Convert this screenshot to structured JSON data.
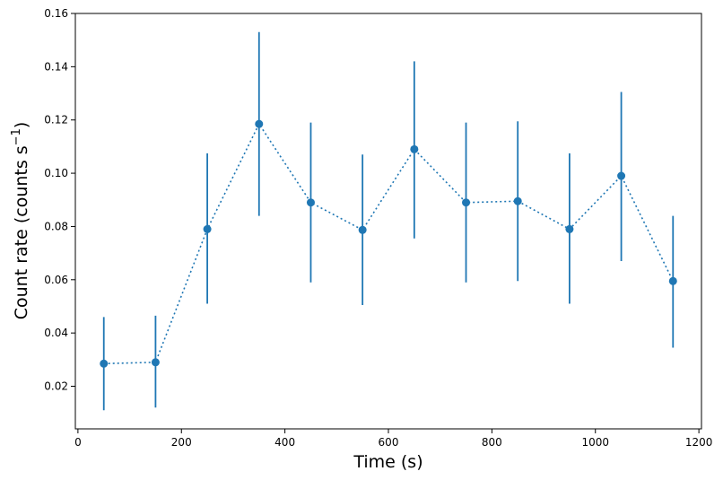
{
  "chart_data": {
    "type": "scatter",
    "title": "",
    "xlabel": "Time (s)",
    "ylabel": "Count rate (counts s",
    "ylabel_sup": "−1",
    "ylabel_tail": ")",
    "xlim": [
      -5,
      1205
    ],
    "ylim": [
      0.004,
      0.16
    ],
    "xticks": [
      0,
      200,
      400,
      600,
      800,
      1000,
      1200
    ],
    "xtick_labels": [
      "0",
      "200",
      "400",
      "600",
      "800",
      "1000",
      "1200"
    ],
    "yticks": [
      0.02,
      0.04,
      0.06,
      0.08,
      0.1,
      0.12,
      0.14,
      0.16
    ],
    "ytick_labels": [
      "0.02",
      "0.04",
      "0.06",
      "0.08",
      "0.10",
      "0.12",
      "0.14",
      "0.16"
    ],
    "grid": false,
    "line_style": "dotted",
    "color": "#1f77b4",
    "series": [
      {
        "x": [
          50,
          150,
          250,
          350,
          450,
          550,
          650,
          750,
          850,
          950,
          1050,
          1150
        ],
        "y": [
          0.0285,
          0.029,
          0.079,
          0.1185,
          0.089,
          0.0787,
          0.109,
          0.089,
          0.0895,
          0.079,
          0.099,
          0.0595
        ],
        "y_low": [
          0.011,
          0.012,
          0.051,
          0.084,
          0.059,
          0.0505,
          0.0755,
          0.059,
          0.0595,
          0.051,
          0.067,
          0.0345
        ],
        "y_high": [
          0.046,
          0.0465,
          0.1075,
          0.153,
          0.119,
          0.107,
          0.142,
          0.119,
          0.1195,
          0.1075,
          0.1305,
          0.084
        ]
      }
    ]
  }
}
